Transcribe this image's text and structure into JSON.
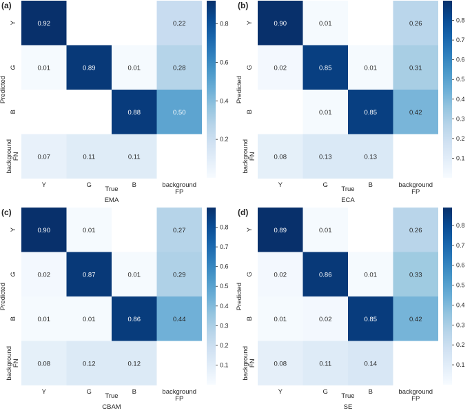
{
  "chart_data": [
    {
      "type": "heatmap",
      "panel_label": "(a)",
      "title": "EMA",
      "xlabel": "True",
      "ylabel": "Predicted",
      "x_categories": [
        "Y",
        "G",
        "B",
        "background\nFP"
      ],
      "y_categories": [
        "Y",
        "G",
        "B",
        "background\nFN"
      ],
      "values": [
        [
          0.92,
          null,
          null,
          0.22
        ],
        [
          0.01,
          0.89,
          0.01,
          0.28
        ],
        [
          null,
          null,
          0.88,
          0.5
        ],
        [
          0.07,
          0.11,
          0.11,
          null
        ]
      ],
      "vmin": 0,
      "vmax": 0.92,
      "colorbar_ticks": [
        "0.2",
        "0.4",
        "0.6",
        "0.8"
      ]
    },
    {
      "type": "heatmap",
      "panel_label": "(b)",
      "title": "ECA",
      "xlabel": "True",
      "ylabel": "Predicted",
      "x_categories": [
        "Y",
        "G",
        "B",
        "background\nFP"
      ],
      "y_categories": [
        "Y",
        "G",
        "B",
        "background\nFN"
      ],
      "values": [
        [
          0.9,
          0.01,
          null,
          0.26
        ],
        [
          0.02,
          0.85,
          0.01,
          0.31
        ],
        [
          null,
          0.01,
          0.85,
          0.42
        ],
        [
          0.08,
          0.13,
          0.13,
          null
        ]
      ],
      "vmin": 0,
      "vmax": 0.9,
      "colorbar_ticks": [
        "0.1",
        "0.2",
        "0.3",
        "0.4",
        "0.5",
        "0.6",
        "0.7",
        "0.8"
      ]
    },
    {
      "type": "heatmap",
      "panel_label": "(c)",
      "title": "CBAM",
      "xlabel": "True",
      "ylabel": "Predicted",
      "x_categories": [
        "Y",
        "G",
        "B",
        "background\nFP"
      ],
      "y_categories": [
        "Y",
        "G",
        "B",
        "background\nFN"
      ],
      "values": [
        [
          0.9,
          0.01,
          null,
          0.27
        ],
        [
          0.02,
          0.87,
          0.01,
          0.29
        ],
        [
          0.01,
          0.01,
          0.86,
          0.44
        ],
        [
          0.08,
          0.12,
          0.12,
          null
        ]
      ],
      "vmin": 0,
      "vmax": 0.9,
      "colorbar_ticks": [
        "0.1",
        "0.2",
        "0.3",
        "0.4",
        "0.5",
        "0.6",
        "0.7",
        "0.8"
      ]
    },
    {
      "type": "heatmap",
      "panel_label": "(d)",
      "title": "SE",
      "xlabel": "True",
      "ylabel": "Predicted",
      "x_categories": [
        "Y",
        "G",
        "B",
        "background\nFP"
      ],
      "y_categories": [
        "Y",
        "G",
        "B",
        "background\nFN"
      ],
      "values": [
        [
          0.89,
          0.01,
          null,
          0.26
        ],
        [
          0.02,
          0.86,
          0.01,
          0.33
        ],
        [
          0.01,
          0.02,
          0.85,
          0.42
        ],
        [
          0.08,
          0.11,
          0.14,
          null
        ]
      ],
      "vmin": 0,
      "vmax": 0.89,
      "colorbar_ticks": [
        "0.1",
        "0.2",
        "0.3",
        "0.4",
        "0.5",
        "0.6",
        "0.7",
        "0.8"
      ]
    }
  ]
}
